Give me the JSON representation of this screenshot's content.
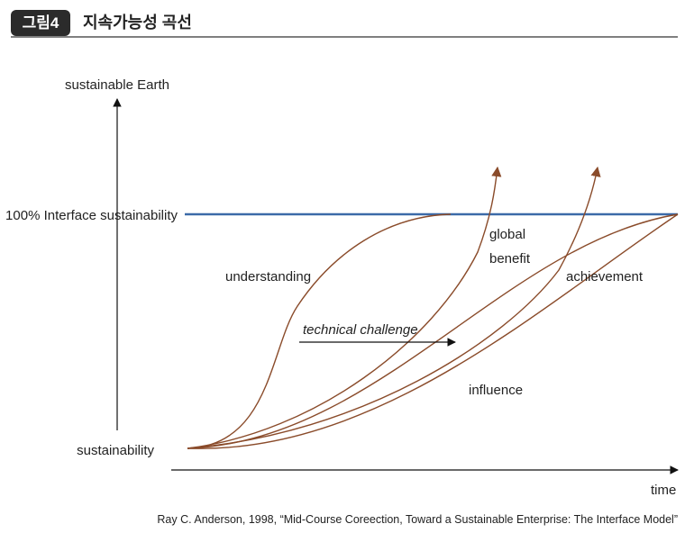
{
  "header": {
    "badge": "그림4",
    "title": "지속가능성 곡선"
  },
  "axes": {
    "y_top": "sustainable Earth",
    "y_level": "100% Interface sustainability",
    "y_origin": "sustainability",
    "x": "time"
  },
  "curve_labels": {
    "understanding": "understanding",
    "technical_challenge": "technical challenge",
    "global_benefit": [
      "global",
      "benefit"
    ],
    "achievement": "achievement",
    "influence": "influence"
  },
  "caption": "Ray C. Anderson, 1998, “Mid-Course Coreection, Toward a Sustainable Enterprise: The Interface Model”"
}
